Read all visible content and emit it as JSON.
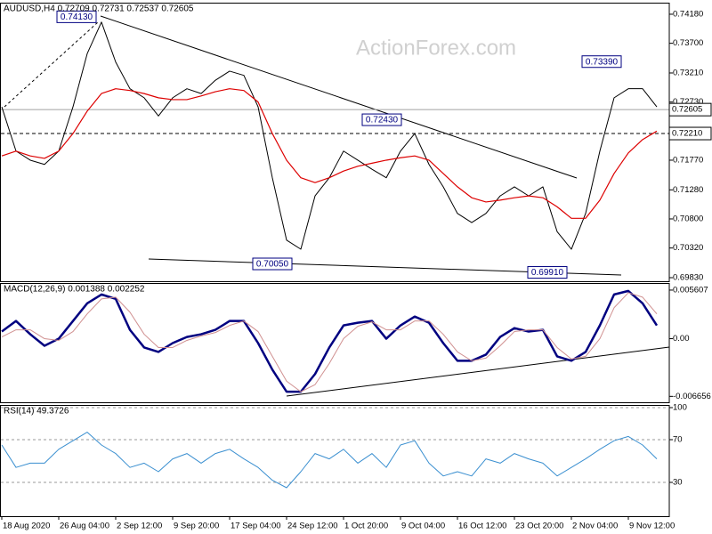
{
  "chart_data": [
    {
      "type": "line",
      "title": "AUDUSD,H4  0.72709 0.72731 0.72537 0.72605",
      "watermark": "ActionForex.com",
      "ylim": [
        0.69771,
        0.74356
      ],
      "yticks": [
        {
          "value": 0.7418,
          "label": "0.74180"
        },
        {
          "value": 0.737,
          "label": "0.73700"
        },
        {
          "value": 0.7321,
          "label": "0.73210"
        },
        {
          "value": 0.7273,
          "label": "0.72730"
        },
        {
          "value": 0.7177,
          "label": "0.71770"
        },
        {
          "value": 0.7128,
          "label": "0.71280"
        },
        {
          "value": 0.708,
          "label": "0.70800"
        },
        {
          "value": 0.7032,
          "label": "0.70320"
        },
        {
          "value": 0.6983,
          "label": "0.69830"
        }
      ],
      "price_lines": [
        {
          "value": 0.72605,
          "label": "0.72605",
          "color": "#a0a0a0",
          "dash": false
        },
        {
          "value": 0.7221,
          "label": "0.72210",
          "color": "#000000",
          "dash": true
        }
      ],
      "annotations": [
        {
          "value": 0.7413,
          "label": "0.74130"
        },
        {
          "value": 0.7243,
          "label": "0.72430"
        },
        {
          "value": 0.7005,
          "label": "0.70050"
        },
        {
          "value": 0.6991,
          "label": "0.69910"
        },
        {
          "value": 0.7339,
          "label": "0.73390"
        }
      ],
      "series": [
        {
          "color": "#000000",
          "values": [
            0.7265,
            0.7192,
            0.7177,
            0.717,
            0.7192,
            0.7265,
            0.7353,
            0.7405,
            0.7339,
            0.7295,
            0.728,
            0.725,
            0.728,
            0.7295,
            0.7287,
            0.7309,
            0.7324,
            0.7317,
            0.7265,
            0.7148,
            0.7045,
            0.703,
            0.7118,
            0.7148,
            0.7192,
            0.7177,
            0.7162,
            0.7148,
            0.7192,
            0.7221,
            0.717,
            0.7133,
            0.7089,
            0.7074,
            0.7089,
            0.7118,
            0.7133,
            0.7118,
            0.7133,
            0.7059,
            0.703,
            0.7089,
            0.7192,
            0.728,
            0.7295,
            0.7295,
            0.7265
          ]
        },
        {
          "color": "#dd0000",
          "values": [
            0.7184,
            0.7192,
            0.7184,
            0.718,
            0.7192,
            0.7221,
            0.7258,
            0.7287,
            0.7295,
            0.7292,
            0.7287,
            0.728,
            0.7277,
            0.7277,
            0.7283,
            0.729,
            0.7295,
            0.7292,
            0.7273,
            0.7221,
            0.7177,
            0.7148,
            0.714,
            0.7148,
            0.7159,
            0.7167,
            0.7172,
            0.7177,
            0.7181,
            0.7184,
            0.7177,
            0.7155,
            0.7133,
            0.7115,
            0.7108,
            0.7111,
            0.7115,
            0.7118,
            0.7115,
            0.71,
            0.7081,
            0.7081,
            0.7111,
            0.7155,
            0.7189,
            0.7211,
            0.7225
          ]
        }
      ]
    },
    {
      "type": "line",
      "title": "MACD(12,26,9) 0.001388 0.002252",
      "ylim": [
        -0.00734,
        0.00632
      ],
      "yticks": [
        0.005607,
        {
          "value": 0,
          "label": "0.00"
        },
        -0.006656
      ],
      "series": [
        {
          "color": "#000080",
          "values": [
            0.00082,
            0.00204,
            0.00051,
            -0.00082,
            0,
            0.00204,
            0.00408,
            0.0051,
            0.00459,
            0.00102,
            -0.00102,
            -0.00153,
            -0.00051,
            0.0002,
            0.00051,
            0.00102,
            0.00204,
            0.00204,
            -0.00051,
            -0.00357,
            -0.00612,
            -0.00612,
            -0.00408,
            -0.00102,
            0.00153,
            0.00184,
            0.00204,
            0,
            0.00153,
            0.00255,
            0.00184,
            -0.00051,
            -0.00255,
            -0.00255,
            -0.00184,
            0.0002,
            0.00122,
            0.00082,
            0.00102,
            -0.00204,
            -0.00255,
            -0.00153,
            0.00153,
            0.0051,
            0.00551,
            0.00408,
            0.00153
          ]
        },
        {
          "color": "#d09090",
          "values": [
            0.0002,
            0.00102,
            0.00102,
            0,
            -0.0002,
            0.00082,
            0.00286,
            0.00459,
            0.00479,
            0.00306,
            0.00051,
            -0.00102,
            -0.00102,
            -0.0002,
            0.00031,
            0.00071,
            0.00153,
            0.00204,
            0.00082,
            -0.00204,
            -0.0049,
            -0.00612,
            -0.0053,
            -0.00286,
            0,
            0.00143,
            0.00194,
            0.00102,
            0.00102,
            0.00204,
            0.00204,
            0.00051,
            -0.00153,
            -0.00255,
            -0.00224,
            -0.00082,
            0.00082,
            0.00102,
            0.00102,
            -0.00102,
            -0.00235,
            -0.00204,
            0,
            0.00357,
            0.0053,
            0.00479,
            0.00286
          ]
        }
      ]
    },
    {
      "type": "line",
      "title": "RSI(14) 49.3726",
      "ylim": [
        -1.67,
        101.67
      ],
      "yticks": [
        30,
        70,
        100
      ],
      "grid": true,
      "categories": [
        "18 Aug 2020",
        null,
        null,
        null,
        "26 Aug 04:00",
        null,
        null,
        null,
        "2 Sep 12:00",
        null,
        null,
        null,
        "9 Sep 20:00",
        null,
        null,
        null,
        "17 Sep 04:00",
        null,
        null,
        null,
        "24 Sep 12:00",
        null,
        null,
        null,
        "1 Oct 20:00",
        null,
        null,
        null,
        "9 Oct 04:00",
        null,
        null,
        null,
        "16 Oct 12:00",
        null,
        null,
        null,
        "23 Oct 20:00",
        null,
        null,
        null,
        "2 Nov 04:00",
        null,
        null,
        null,
        "9 Nov 12:00",
        null,
        null
      ],
      "series": [
        {
          "color": "#3a8fd0",
          "values": [
            65,
            44,
            48,
            48,
            61,
            69,
            77,
            65,
            57,
            44,
            48,
            40,
            52,
            57,
            48,
            57,
            61,
            52,
            44,
            32,
            25,
            40,
            57,
            52,
            61,
            48,
            57,
            44,
            65,
            69,
            48,
            36,
            40,
            36,
            52,
            48,
            57,
            52,
            48,
            36,
            44,
            52,
            61,
            69,
            73,
            65,
            52
          ]
        }
      ]
    }
  ]
}
